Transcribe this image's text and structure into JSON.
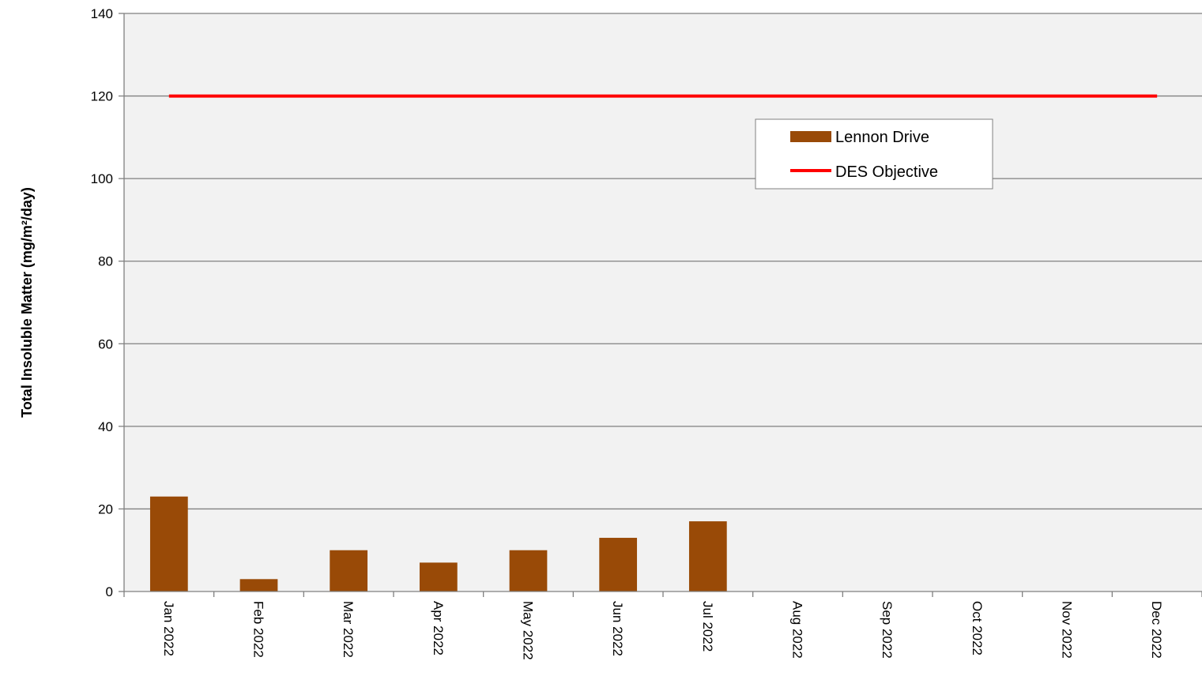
{
  "chart_data": {
    "type": "bar",
    "categories": [
      "Jan 2022",
      "Feb 2022",
      "Mar 2022",
      "Apr 2022",
      "May 2022",
      "Jun 2022",
      "Jul 2022",
      "Aug 2022",
      "Sep 2022",
      "Oct 2022",
      "Nov 2022",
      "Dec 2022"
    ],
    "series": [
      {
        "name": "Lennon Drive",
        "type": "bar",
        "color": "#994a07",
        "values": [
          23,
          3,
          10,
          7,
          10,
          13,
          17,
          null,
          null,
          null,
          null,
          null
        ]
      },
      {
        "name": "DES Objective",
        "type": "line",
        "color": "#ff0000",
        "values": [
          120,
          120,
          120,
          120,
          120,
          120,
          120,
          120,
          120,
          120,
          120,
          120
        ]
      }
    ],
    "title": "",
    "xlabel": "",
    "ylabel": "Total Insoluble Matter (mg/m²/day)",
    "ylim": [
      0,
      140
    ],
    "yticks": [
      0,
      20,
      40,
      60,
      80,
      100,
      120,
      140
    ],
    "grid": true,
    "legend_position": "top-right",
    "plot_background": "#f2f2f2",
    "gridline_color": "#808080"
  }
}
